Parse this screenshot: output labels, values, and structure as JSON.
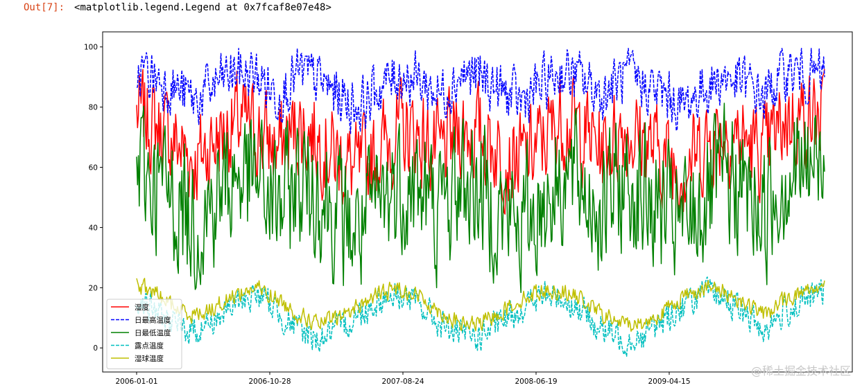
{
  "cell_output": {
    "prompt": "Out[7]:",
    "text": "<matplotlib.legend.Legend at 0x7fcaf8e07e48>"
  },
  "watermark": "@稀土掘金技术社区",
  "chart_data": {
    "type": "line",
    "x_type": "date",
    "date_range": [
      "2006-01-01",
      "2010-03-31"
    ],
    "ylim": [
      -8,
      105
    ],
    "y_ticks": [
      0,
      20,
      40,
      60,
      80,
      100
    ],
    "x_ticks": [
      "2006-01-01",
      "2006-10-28",
      "2007-08-24",
      "2008-06-19",
      "2009-04-15"
    ],
    "legend_position": "lower-left",
    "grid": false,
    "series": [
      {
        "name": "湿度",
        "color": "#ff0000",
        "dash": "solid",
        "x": [
          "2006-01-01",
          "2006-02-15",
          "2006-04-01",
          "2006-05-15",
          "2006-07-01",
          "2006-08-15",
          "2006-10-01",
          "2006-11-15",
          "2007-01-01",
          "2007-02-15",
          "2007-04-01",
          "2007-05-15",
          "2007-07-01",
          "2007-08-15",
          "2007-10-01",
          "2007-11-15",
          "2008-01-01",
          "2008-02-15",
          "2008-04-01",
          "2008-05-15",
          "2008-07-01",
          "2008-08-15",
          "2008-10-01",
          "2008-11-15",
          "2009-01-01",
          "2009-02-15",
          "2009-04-01",
          "2009-05-15",
          "2009-07-01",
          "2009-08-15",
          "2009-10-01",
          "2009-11-15",
          "2010-01-01",
          "2010-02-15",
          "2010-03-31"
        ],
        "values": [
          78,
          74,
          68,
          62,
          70,
          75,
          72,
          66,
          74,
          70,
          63,
          58,
          66,
          72,
          70,
          64,
          73,
          71,
          65,
          62,
          68,
          76,
          72,
          66,
          73,
          69,
          64,
          60,
          67,
          73,
          69,
          64,
          76,
          77,
          76
        ]
      },
      {
        "name": "日最高温度",
        "color": "#0000ff",
        "dash": "dashed",
        "x": [
          "2006-01-01",
          "2006-02-15",
          "2006-04-01",
          "2006-05-15",
          "2006-07-01",
          "2006-08-15",
          "2006-10-01",
          "2006-11-15",
          "2007-01-01",
          "2007-02-15",
          "2007-04-01",
          "2007-05-15",
          "2007-07-01",
          "2007-08-15",
          "2007-10-01",
          "2007-11-15",
          "2008-01-01",
          "2008-02-15",
          "2008-04-01",
          "2008-05-15",
          "2008-07-01",
          "2008-08-15",
          "2008-10-01",
          "2008-11-15",
          "2009-01-01",
          "2009-02-15",
          "2009-04-01",
          "2009-05-15",
          "2009-07-01",
          "2009-08-15",
          "2009-10-01",
          "2009-11-15",
          "2010-01-01",
          "2010-02-15",
          "2010-03-31"
        ],
        "values": [
          92,
          90,
          86,
          82,
          88,
          92,
          90,
          84,
          91,
          89,
          84,
          80,
          86,
          91,
          89,
          84,
          91,
          90,
          85,
          82,
          87,
          92,
          89,
          84,
          90,
          88,
          84,
          80,
          86,
          90,
          88,
          83,
          92,
          91,
          90
        ]
      },
      {
        "name": "日最低温度",
        "color": "#008000",
        "dash": "solid",
        "x": [
          "2006-01-01",
          "2006-02-15",
          "2006-04-01",
          "2006-05-15",
          "2006-07-01",
          "2006-08-15",
          "2006-10-01",
          "2006-11-15",
          "2007-01-01",
          "2007-02-15",
          "2007-04-01",
          "2007-05-15",
          "2007-07-01",
          "2007-08-15",
          "2007-10-01",
          "2007-11-15",
          "2008-01-01",
          "2008-02-15",
          "2008-04-01",
          "2008-05-15",
          "2008-07-01",
          "2008-08-15",
          "2008-10-01",
          "2008-11-15",
          "2009-01-01",
          "2009-02-15",
          "2009-04-01",
          "2009-05-15",
          "2009-07-01",
          "2009-08-15",
          "2009-10-01",
          "2009-11-15",
          "2010-01-01",
          "2010-02-15",
          "2010-03-31"
        ],
        "values": [
          60,
          55,
          48,
          42,
          50,
          58,
          55,
          46,
          56,
          52,
          44,
          38,
          47,
          55,
          52,
          45,
          55,
          53,
          45,
          41,
          48,
          58,
          54,
          46,
          55,
          51,
          45,
          40,
          48,
          56,
          52,
          45,
          58,
          60,
          62
        ]
      },
      {
        "name": "露点温度",
        "color": "#00bfbf",
        "dash": "dashed",
        "x": [
          "2006-01-01",
          "2006-02-15",
          "2006-04-01",
          "2006-05-15",
          "2006-07-01",
          "2006-08-15",
          "2006-10-01",
          "2006-11-15",
          "2007-01-01",
          "2007-02-15",
          "2007-04-01",
          "2007-05-15",
          "2007-07-01",
          "2007-08-15",
          "2007-10-01",
          "2007-11-15",
          "2008-01-01",
          "2008-02-15",
          "2008-04-01",
          "2008-05-15",
          "2008-07-01",
          "2008-08-15",
          "2008-10-01",
          "2008-11-15",
          "2009-01-01",
          "2009-02-15",
          "2009-04-01",
          "2009-05-15",
          "2009-07-01",
          "2009-08-15",
          "2009-10-01",
          "2009-11-15",
          "2010-01-01",
          "2010-02-15",
          "2010-03-31"
        ],
        "values": [
          17,
          12,
          7,
          6,
          10,
          15,
          18,
          12,
          6,
          3,
          6,
          11,
          16,
          18,
          14,
          8,
          4,
          4,
          8,
          13,
          17,
          17,
          12,
          6,
          3,
          4,
          9,
          14,
          18,
          17,
          11,
          6,
          12,
          16,
          19
        ]
      },
      {
        "name": "湿球温度",
        "color": "#bfbf00",
        "dash": "solid",
        "x": [
          "2006-01-01",
          "2006-02-15",
          "2006-04-01",
          "2006-05-15",
          "2006-07-01",
          "2006-08-15",
          "2006-10-01",
          "2006-11-15",
          "2007-01-01",
          "2007-02-15",
          "2007-04-01",
          "2007-05-15",
          "2007-07-01",
          "2007-08-15",
          "2007-10-01",
          "2007-11-15",
          "2008-01-01",
          "2008-02-15",
          "2008-04-01",
          "2008-05-15",
          "2008-07-01",
          "2008-08-15",
          "2008-10-01",
          "2008-11-15",
          "2009-01-01",
          "2009-02-15",
          "2009-04-01",
          "2009-05-15",
          "2009-07-01",
          "2009-08-15",
          "2009-10-01",
          "2009-11-15",
          "2010-01-01",
          "2010-02-15",
          "2010-03-31"
        ],
        "values": [
          21,
          18,
          13,
          11,
          14,
          18,
          20,
          16,
          11,
          8,
          10,
          14,
          18,
          20,
          17,
          12,
          8,
          8,
          12,
          16,
          19,
          19,
          16,
          11,
          8,
          8,
          12,
          17,
          20,
          19,
          15,
          11,
          16,
          19,
          21
        ]
      }
    ]
  }
}
